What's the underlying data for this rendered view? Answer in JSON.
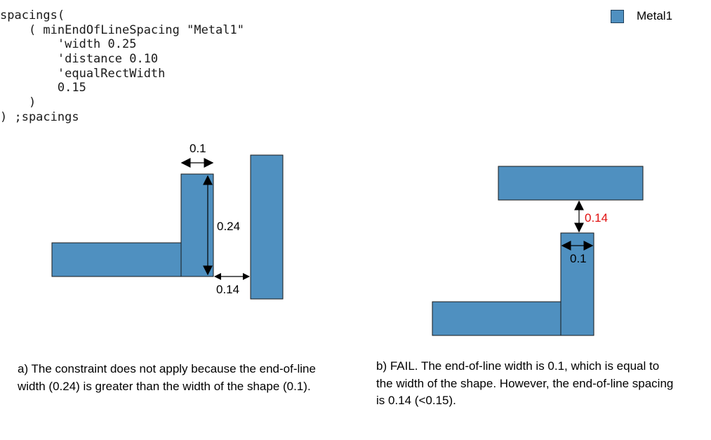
{
  "code": {
    "lines": [
      "spacings(",
      "    ( minEndOfLineSpacing \"Metal1\"",
      "        'width 0.25",
      "        'distance 0.10",
      "        'equalRectWidth",
      "        0.15",
      "    )",
      ") ;spacings"
    ]
  },
  "legend": {
    "label": "Metal1",
    "color": "#4f90c0"
  },
  "colors": {
    "shape_fill": "#4f90c0",
    "shape_stroke": "#1a1a1a",
    "highlight_text": "#e01010"
  },
  "diagram_a": {
    "label_width": "0.1",
    "label_eol_width": "0.24",
    "label_spacing": "0.14"
  },
  "diagram_b": {
    "label_spacing": "0.14",
    "label_width": "0.1"
  },
  "captions": {
    "a": "a) The constraint does not apply because the end-of-line width (0.24) is greater than the width of the shape (0.1).",
    "b": "b) FAIL. The end-of-line width is 0.1, which is equal to the width of the shape. However, the end-of-line spacing is 0.14 (<0.15)."
  }
}
